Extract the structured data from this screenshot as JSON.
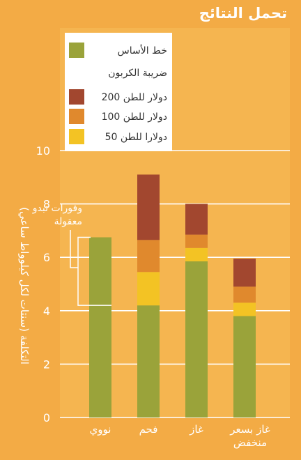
{
  "chart_data": {
    "type": "bar",
    "stacked": true,
    "title": "تحمل النتائج",
    "ylabel": "التكلفة (سنتات لكل كيلوواط ساعي)",
    "ylim": [
      0,
      10
    ],
    "yticks": [
      "0",
      "2",
      "4",
      "6",
      "8",
      "10"
    ],
    "categories": [
      "نووي",
      "فحم",
      "غاز",
      "غاز بسعر منخفض"
    ],
    "category_lines": [
      [
        "نووي"
      ],
      [
        "فحم"
      ],
      [
        "غاز"
      ],
      [
        "غاز بسعر",
        "منخفض"
      ]
    ],
    "series": [
      {
        "name": "خط الأساس",
        "color": "#9aa33a",
        "values": [
          6.75,
          4.2,
          5.85,
          3.8
        ]
      },
      {
        "name": "50 دولارا للطن",
        "color": "#f3c324",
        "values": [
          0,
          1.25,
          0.5,
          0.5
        ]
      },
      {
        "name": "100 دولار للطن",
        "color": "#e0892d",
        "values": [
          0,
          1.2,
          0.5,
          0.6
        ]
      },
      {
        "name": "200 دولار للطن",
        "color": "#a2472f",
        "values": [
          0,
          2.45,
          1.15,
          1.05
        ]
      }
    ],
    "legend": {
      "placement": "top",
      "subheading": "ضريبة الكربون",
      "order": [
        0,
        3,
        2,
        1
      ]
    },
    "annotation": {
      "lines": [
        "وفورات تبدو",
        "معقولة"
      ],
      "range": [
        4.2,
        6.75
      ]
    },
    "grid": true
  }
}
